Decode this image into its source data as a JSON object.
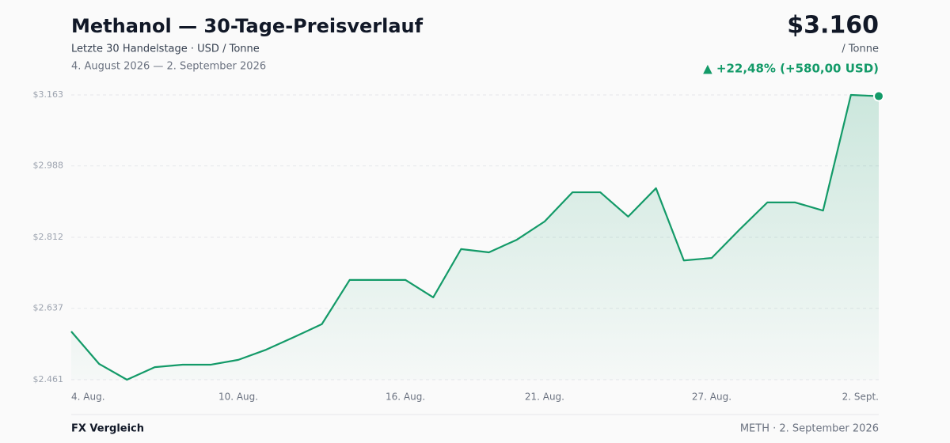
{
  "header": {
    "title": "Methanol — 30-Tage-Preisverlauf",
    "subtitle": "Letzte 30 Handelstage · USD / Tonne",
    "date_range": "4. August 2026 — 2. September 2026",
    "price": "$3.160",
    "unit": "/ Tonne",
    "change": "▲ +22,48% (+580,00 USD)"
  },
  "chart_data": {
    "type": "line",
    "color": "#139a68",
    "grid": true,
    "categories": [
      "4. Aug.",
      null,
      null,
      null,
      null,
      null,
      "10. Aug.",
      null,
      null,
      null,
      null,
      null,
      "16. Aug.",
      null,
      null,
      null,
      null,
      "21. Aug.",
      null,
      null,
      null,
      null,
      null,
      "27. Aug.",
      null,
      null,
      null,
      null,
      null,
      "2. Sept."
    ],
    "values": [
      2580,
      2500,
      2461,
      2492,
      2498,
      2498,
      2510,
      2535,
      2566,
      2598,
      2707,
      2707,
      2707,
      2664,
      2783,
      2775,
      2806,
      2851,
      2923,
      2923,
      2863,
      2933,
      2755,
      2761,
      2831,
      2898,
      2898,
      2878,
      3163,
      3160
    ],
    "ylim": [
      2461,
      3163
    ],
    "yticks": [
      {
        "value": 2461,
        "label": "$2.461"
      },
      {
        "value": 2637,
        "label": "$2.637"
      },
      {
        "value": 2812,
        "label": "$2.812"
      },
      {
        "value": 2988,
        "label": "$2.988"
      },
      {
        "value": 3163,
        "label": "$3.163"
      }
    ]
  },
  "footer": {
    "left": "FX Vergleich",
    "right": "METH · 2. September 2026"
  }
}
